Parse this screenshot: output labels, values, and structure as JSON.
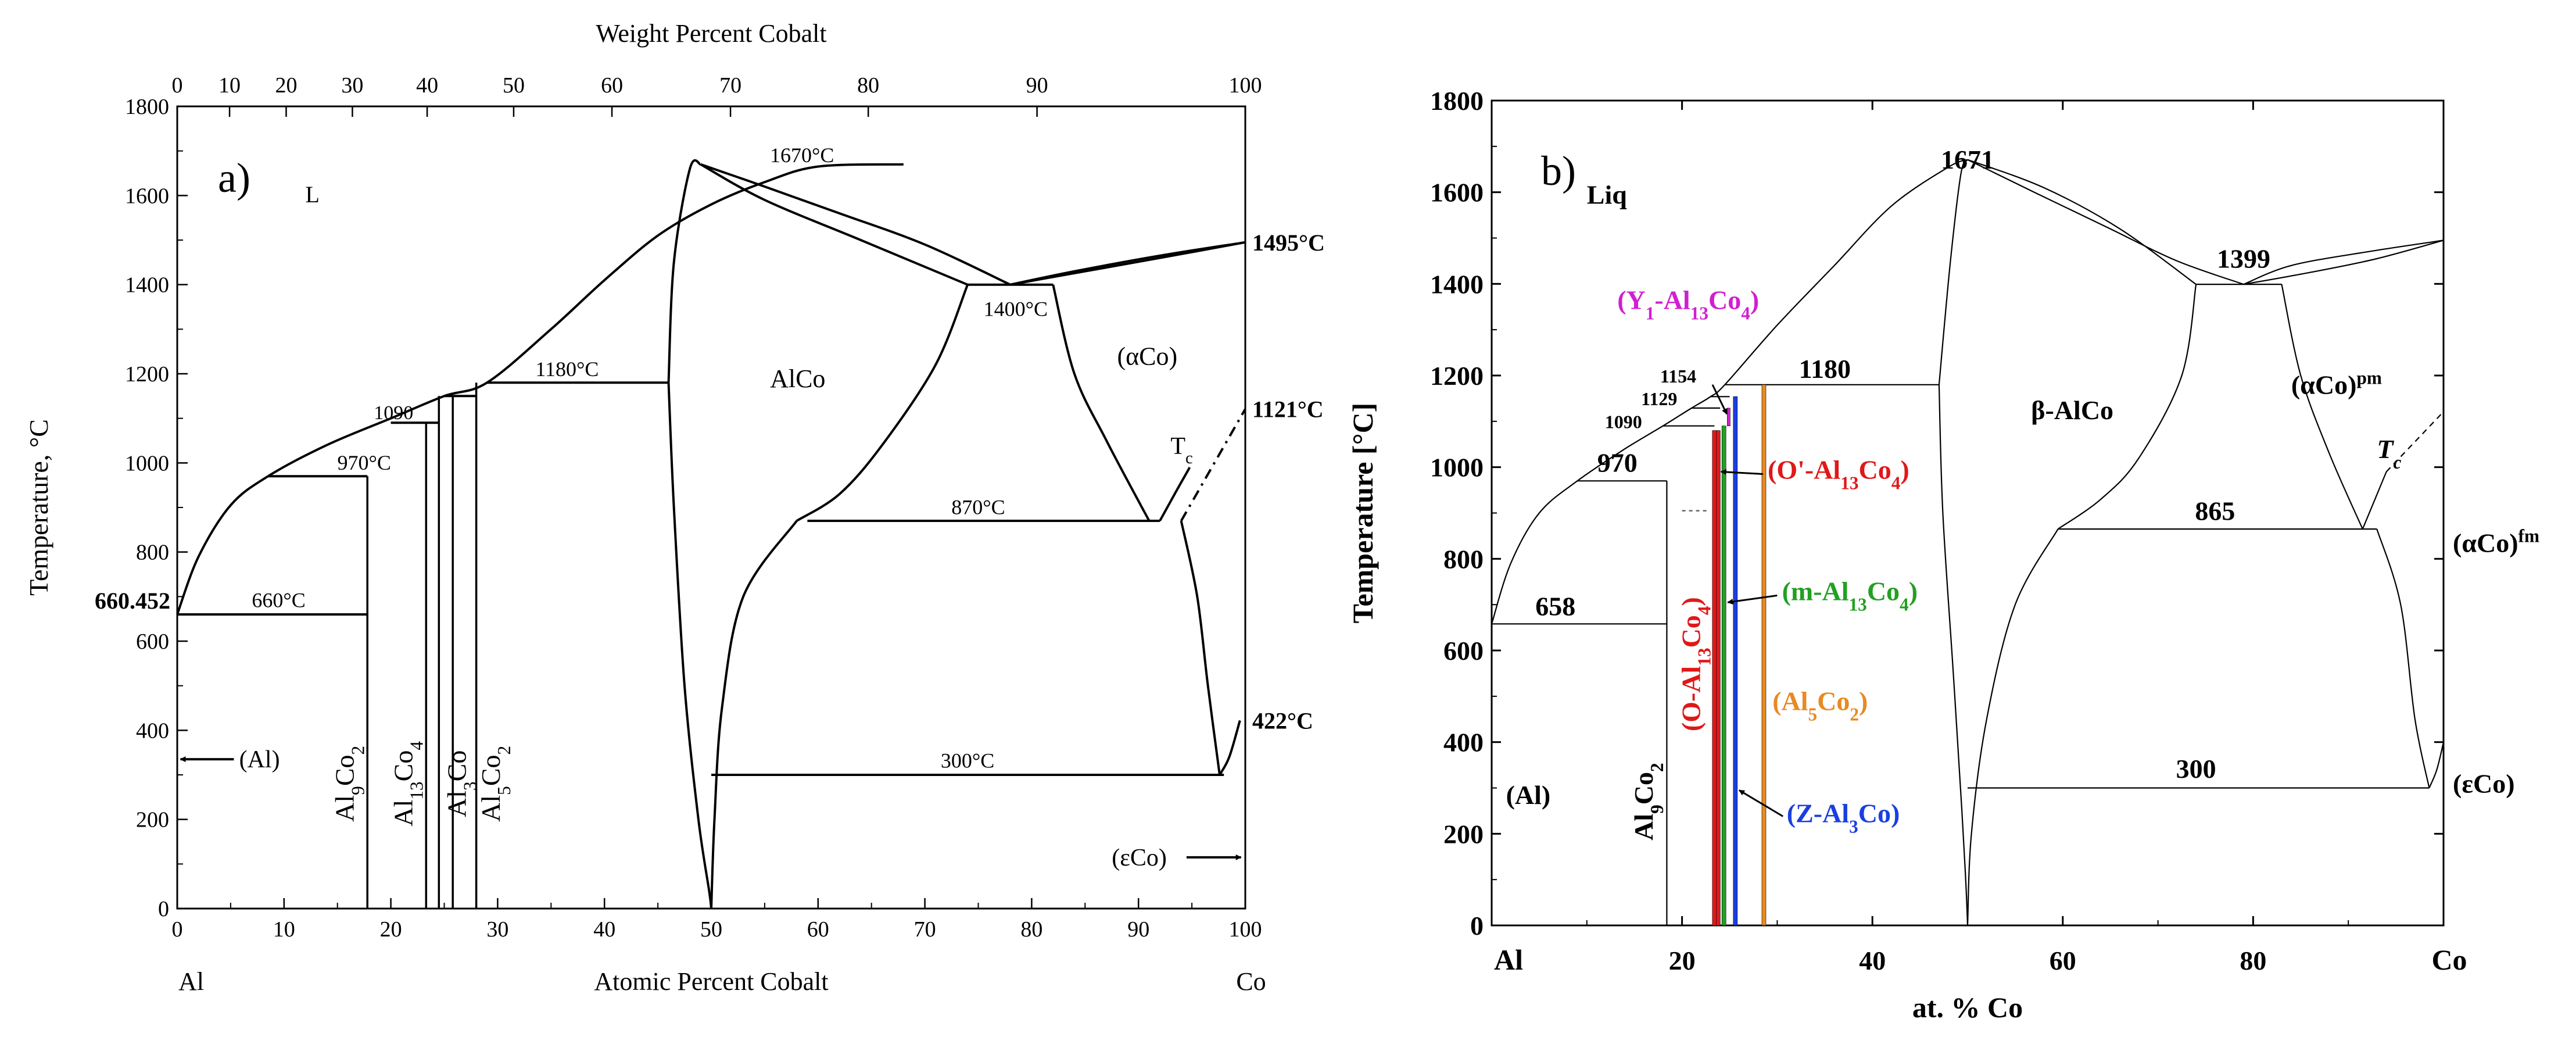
{
  "chart_data": [
    {
      "panel": "a)",
      "type": "phase-diagram",
      "top_axis_title": "Weight Percent Cobalt",
      "xlabel": "Atomic Percent Cobalt",
      "ylabel": "Temperature, °C",
      "xlim": [
        0,
        100
      ],
      "ylim": [
        0,
        1800
      ],
      "x_ticks": [
        "0",
        "10",
        "20",
        "30",
        "40",
        "50",
        "60",
        "70",
        "80",
        "90",
        "100"
      ],
      "y_ticks": [
        "0",
        "200",
        "400",
        "600",
        "800",
        "1000",
        "1200",
        "1400",
        "1600",
        "1800"
      ],
      "top_ticks": [
        {
          "wt": 0,
          "at": 0,
          "label": "0"
        },
        {
          "wt": 10,
          "at": 4.9,
          "label": "10"
        },
        {
          "wt": 20,
          "at": 10.2,
          "label": "20"
        },
        {
          "wt": 30,
          "at": 16.4,
          "label": "30"
        },
        {
          "wt": 40,
          "at": 23.4,
          "label": "40"
        },
        {
          "wt": 50,
          "at": 31.5,
          "label": "50"
        },
        {
          "wt": 60,
          "at": 40.7,
          "label": "60"
        },
        {
          "wt": 70,
          "at": 51.8,
          "label": "70"
        },
        {
          "wt": 80,
          "at": 64.7,
          "label": "80"
        },
        {
          "wt": 90,
          "at": 80.5,
          "label": "90"
        },
        {
          "wt": 100,
          "at": 100,
          "label": "100"
        }
      ],
      "corner_left": "Al",
      "corner_right": "Co",
      "liquidus": [
        [
          0,
          660
        ],
        [
          2,
          790
        ],
        [
          5,
          905
        ],
        [
          8.5,
          970
        ],
        [
          14,
          1040
        ],
        [
          20,
          1100
        ],
        [
          25,
          1150
        ],
        [
          29,
          1180
        ],
        [
          35,
          1300
        ],
        [
          40,
          1410
        ],
        [
          45,
          1510
        ],
        [
          50,
          1580
        ],
        [
          55,
          1630
        ],
        [
          60,
          1665
        ],
        [
          68,
          1670
        ]
      ],
      "labels": {
        "melt_al": "660.452",
        "melt_co": "1495°C",
        "tc_temp": "1121°C",
        "eps_temp": "422°C",
        "liquid": "L",
        "alco": "AlCo",
        "alpha_co": "(αCo)",
        "tc": "Tc",
        "al": "(Al)",
        "eps_co": "(εCo)",
        "t1670": "1670°C",
        "t1400": "1400°C",
        "t1180": "1180°C",
        "t1090": "1090",
        "t970": "970°C",
        "t870": "870°C",
        "t660": "660°C",
        "t300": "300°C"
      },
      "phases": [
        "Al9Co2",
        "Al13Co4",
        "Al3Co",
        "Al5Co2"
      ]
    },
    {
      "panel": "b)",
      "type": "phase-diagram",
      "xlabel": "at. % Co",
      "ylabel": "Temperature [°C]",
      "xlim": [
        0,
        100
      ],
      "ylim": [
        0,
        1800
      ],
      "x_ticks": [
        "20",
        "40",
        "60",
        "80"
      ],
      "y_ticks": [
        "0",
        "200",
        "400",
        "600",
        "800",
        "1000",
        "1200",
        "1400",
        "1600",
        "1800"
      ],
      "corner_left": "Al",
      "corner_right": "Co",
      "labels": {
        "liquid": "Liq",
        "beta": "β-AlCo",
        "alpha_pm": "(αCo)pm",
        "alpha_fm": "(αCo)fm",
        "eps": "(εCo)",
        "al": "(Al)",
        "tc": "Tc",
        "t1671": "1671",
        "t1399": "1399",
        "t1180": "1180",
        "t1154": "1154",
        "t1129": "1129",
        "t1090": "1090",
        "t970": "970",
        "t865": "865",
        "t658": "658",
        "t300": "300"
      },
      "phase_lines": [
        {
          "name": "O-Al13Co4",
          "x": 23.4,
          "color": "#e01818"
        },
        {
          "name": "O'-Al13Co4",
          "x": 23.8,
          "color": "#e01818"
        },
        {
          "name": "m-Al13Co4",
          "x": 24.4,
          "color": "#22a022"
        },
        {
          "name": "Y1-Al13Co4",
          "x": 24.9,
          "color": "#d020d0"
        },
        {
          "name": "Z-Al3Co",
          "x": 25.6,
          "color": "#1a3fe0"
        },
        {
          "name": "Al5Co2",
          "x": 28.6,
          "color": "#e88a20"
        }
      ],
      "callouts": {
        "y1": "(Y1-Al13Co4)",
        "oprime": "(O'-Al13Co4)",
        "m": "(m-Al13Co4)",
        "al5co2": "(Al5Co2)",
        "z": "(Z-Al3Co)",
        "o": "(O-Al13Co4)",
        "al9co2": "Al9Co2"
      },
      "colors": {
        "magenta": "#d020d0",
        "red": "#e01818",
        "green": "#22a022",
        "orange": "#e88a20",
        "blue": "#1a3fe0"
      }
    }
  ]
}
